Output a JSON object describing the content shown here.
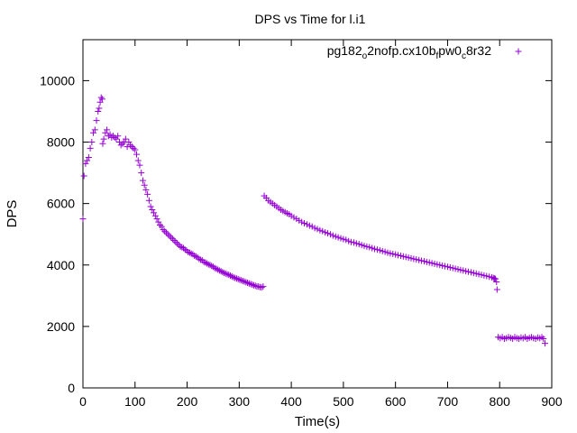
{
  "chart_data": {
    "type": "scatter",
    "title": "DPS vs Time for l.i1",
    "xlabel": "Time(s)",
    "ylabel": "DPS",
    "xlim": [
      0,
      900
    ],
    "ylim": [
      0,
      11333
    ],
    "x_ticks": [
      0,
      100,
      200,
      300,
      400,
      500,
      600,
      700,
      800,
      900
    ],
    "y_ticks": [
      0,
      2000,
      4000,
      6000,
      8000,
      10000
    ],
    "grid": false,
    "legend_position": "top-right",
    "marker": "+",
    "series": [
      {
        "name_parts": [
          {
            "t": "pg182",
            "sub": false
          },
          {
            "t": "o",
            "sub": true
          },
          {
            "t": "2nofp.cx10b",
            "sub": false
          },
          {
            "t": "f",
            "sub": true
          },
          {
            "t": "pw0",
            "sub": false
          },
          {
            "t": "c",
            "sub": true
          },
          {
            "t": "8r32",
            "sub": false
          }
        ],
        "color": "#9400d3",
        "points": [
          [
            0,
            5500
          ],
          [
            2,
            6900
          ],
          [
            5,
            7300
          ],
          [
            8,
            7400
          ],
          [
            11,
            7500
          ],
          [
            14,
            7800
          ],
          [
            17,
            8000
          ],
          [
            20,
            8300
          ],
          [
            23,
            8400
          ],
          [
            26,
            8700
          ],
          [
            29,
            9000
          ],
          [
            31,
            9100
          ],
          [
            33,
            9300
          ],
          [
            35,
            9450
          ],
          [
            37,
            9400
          ],
          [
            38,
            7950
          ],
          [
            40,
            8100
          ],
          [
            43,
            8300
          ],
          [
            46,
            8400
          ],
          [
            49,
            8200
          ],
          [
            52,
            8250
          ],
          [
            55,
            8150
          ],
          [
            58,
            8200
          ],
          [
            61,
            8150
          ],
          [
            64,
            8100
          ],
          [
            67,
            8200
          ],
          [
            70,
            8000
          ],
          [
            73,
            7900
          ],
          [
            76,
            7950
          ],
          [
            79,
            8000
          ],
          [
            82,
            8100
          ],
          [
            85,
            7850
          ],
          [
            88,
            8000
          ],
          [
            91,
            7900
          ],
          [
            94,
            7850
          ],
          [
            97,
            7800
          ],
          [
            100,
            7750
          ],
          [
            103,
            7600
          ],
          [
            106,
            7400
          ],
          [
            109,
            7250
          ],
          [
            112,
            7000
          ],
          [
            115,
            6750
          ],
          [
            118,
            6600
          ],
          [
            121,
            6450
          ],
          [
            124,
            6300
          ],
          [
            127,
            6100
          ],
          [
            130,
            5900
          ],
          [
            133,
            5800
          ],
          [
            136,
            5700
          ],
          [
            139,
            5600
          ],
          [
            142,
            5500
          ],
          [
            145,
            5400
          ],
          [
            148,
            5300
          ],
          [
            151,
            5250
          ],
          [
            154,
            5150
          ],
          [
            157,
            5100
          ],
          [
            160,
            5050
          ],
          [
            163,
            5000
          ],
          [
            166,
            4950
          ],
          [
            169,
            4900
          ],
          [
            172,
            4850
          ],
          [
            175,
            4800
          ],
          [
            178,
            4750
          ],
          [
            181,
            4700
          ],
          [
            184,
            4650
          ],
          [
            187,
            4600
          ],
          [
            190,
            4580
          ],
          [
            193,
            4550
          ],
          [
            196,
            4500
          ],
          [
            199,
            4470
          ],
          [
            202,
            4420
          ],
          [
            205,
            4400
          ],
          [
            208,
            4370
          ],
          [
            211,
            4350
          ],
          [
            214,
            4300
          ],
          [
            217,
            4280
          ],
          [
            220,
            4250
          ],
          [
            223,
            4200
          ],
          [
            226,
            4170
          ],
          [
            229,
            4150
          ],
          [
            232,
            4100
          ],
          [
            235,
            4080
          ],
          [
            238,
            4050
          ],
          [
            241,
            4020
          ],
          [
            244,
            4000
          ],
          [
            247,
            3970
          ],
          [
            250,
            3940
          ],
          [
            253,
            3900
          ],
          [
            256,
            3880
          ],
          [
            259,
            3850
          ],
          [
            262,
            3820
          ],
          [
            265,
            3800
          ],
          [
            268,
            3770
          ],
          [
            271,
            3740
          ],
          [
            274,
            3720
          ],
          [
            277,
            3700
          ],
          [
            280,
            3680
          ],
          [
            283,
            3650
          ],
          [
            286,
            3630
          ],
          [
            289,
            3600
          ],
          [
            292,
            3580
          ],
          [
            295,
            3560
          ],
          [
            298,
            3540
          ],
          [
            301,
            3520
          ],
          [
            304,
            3500
          ],
          [
            307,
            3480
          ],
          [
            310,
            3460
          ],
          [
            313,
            3440
          ],
          [
            316,
            3420
          ],
          [
            319,
            3400
          ],
          [
            322,
            3380
          ],
          [
            325,
            3360
          ],
          [
            328,
            3340
          ],
          [
            331,
            3320
          ],
          [
            334,
            3300
          ],
          [
            337,
            3300
          ],
          [
            340,
            3280
          ],
          [
            343,
            3270
          ],
          [
            346,
            3300
          ],
          [
            348,
            6250
          ],
          [
            352,
            6180
          ],
          [
            356,
            6100
          ],
          [
            360,
            6050
          ],
          [
            364,
            6000
          ],
          [
            368,
            5950
          ],
          [
            372,
            5900
          ],
          [
            376,
            5850
          ],
          [
            380,
            5800
          ],
          [
            384,
            5760
          ],
          [
            388,
            5720
          ],
          [
            392,
            5680
          ],
          [
            396,
            5650
          ],
          [
            400,
            5600
          ],
          [
            405,
            5550
          ],
          [
            410,
            5500
          ],
          [
            415,
            5450
          ],
          [
            420,
            5400
          ],
          [
            425,
            5360
          ],
          [
            430,
            5320
          ],
          [
            435,
            5280
          ],
          [
            440,
            5250
          ],
          [
            445,
            5200
          ],
          [
            450,
            5170
          ],
          [
            455,
            5130
          ],
          [
            460,
            5100
          ],
          [
            465,
            5060
          ],
          [
            470,
            5030
          ],
          [
            475,
            5000
          ],
          [
            480,
            4960
          ],
          [
            485,
            4930
          ],
          [
            490,
            4900
          ],
          [
            495,
            4870
          ],
          [
            500,
            4840
          ],
          [
            505,
            4820
          ],
          [
            510,
            4780
          ],
          [
            515,
            4750
          ],
          [
            520,
            4730
          ],
          [
            525,
            4700
          ],
          [
            530,
            4680
          ],
          [
            535,
            4650
          ],
          [
            540,
            4620
          ],
          [
            545,
            4600
          ],
          [
            550,
            4580
          ],
          [
            555,
            4550
          ],
          [
            560,
            4520
          ],
          [
            565,
            4500
          ],
          [
            570,
            4480
          ],
          [
            575,
            4450
          ],
          [
            580,
            4430
          ],
          [
            585,
            4400
          ],
          [
            590,
            4380
          ],
          [
            595,
            4360
          ],
          [
            600,
            4340
          ],
          [
            605,
            4320
          ],
          [
            610,
            4300
          ],
          [
            615,
            4280
          ],
          [
            620,
            4260
          ],
          [
            625,
            4240
          ],
          [
            630,
            4220
          ],
          [
            635,
            4200
          ],
          [
            640,
            4180
          ],
          [
            645,
            4160
          ],
          [
            650,
            4140
          ],
          [
            655,
            4120
          ],
          [
            660,
            4100
          ],
          [
            665,
            4080
          ],
          [
            670,
            4060
          ],
          [
            675,
            4040
          ],
          [
            680,
            4020
          ],
          [
            685,
            4000
          ],
          [
            690,
            3980
          ],
          [
            695,
            3960
          ],
          [
            700,
            3940
          ],
          [
            705,
            3920
          ],
          [
            710,
            3900
          ],
          [
            715,
            3880
          ],
          [
            720,
            3860
          ],
          [
            725,
            3840
          ],
          [
            730,
            3820
          ],
          [
            735,
            3800
          ],
          [
            740,
            3780
          ],
          [
            745,
            3760
          ],
          [
            750,
            3740
          ],
          [
            755,
            3720
          ],
          [
            760,
            3700
          ],
          [
            765,
            3680
          ],
          [
            770,
            3660
          ],
          [
            775,
            3640
          ],
          [
            780,
            3620
          ],
          [
            785,
            3600
          ],
          [
            788,
            3580
          ],
          [
            790,
            3560
          ],
          [
            792,
            3550
          ],
          [
            794,
            3450
          ],
          [
            795,
            3200
          ],
          [
            797,
            1650
          ],
          [
            801,
            1620
          ],
          [
            805,
            1650
          ],
          [
            809,
            1600
          ],
          [
            813,
            1620
          ],
          [
            817,
            1650
          ],
          [
            821,
            1630
          ],
          [
            825,
            1600
          ],
          [
            829,
            1650
          ],
          [
            833,
            1620
          ],
          [
            837,
            1600
          ],
          [
            841,
            1640
          ],
          [
            845,
            1620
          ],
          [
            849,
            1650
          ],
          [
            853,
            1600
          ],
          [
            857,
            1630
          ],
          [
            861,
            1650
          ],
          [
            865,
            1620
          ],
          [
            869,
            1600
          ],
          [
            873,
            1640
          ],
          [
            877,
            1620
          ],
          [
            881,
            1650
          ],
          [
            884,
            1600
          ],
          [
            887,
            1450
          ]
        ]
      }
    ]
  }
}
